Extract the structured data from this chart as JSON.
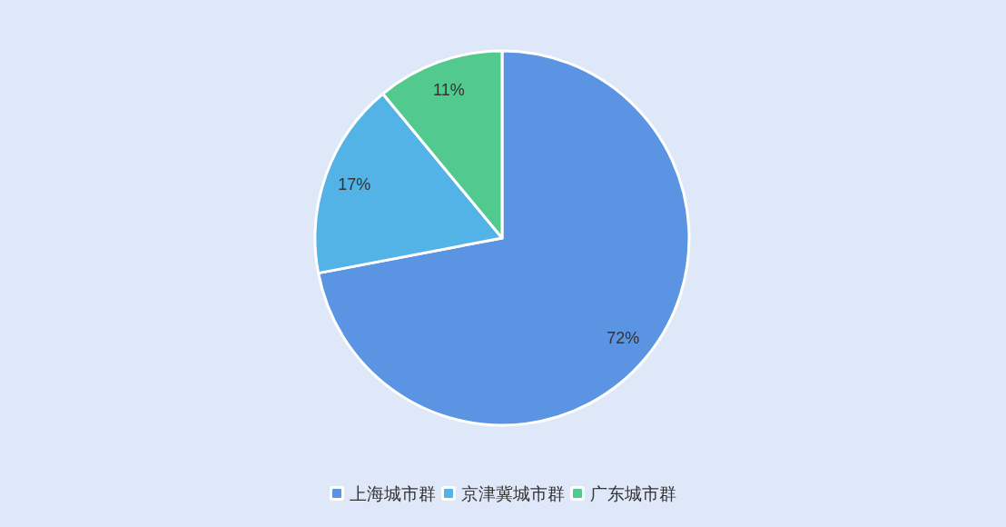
{
  "chart_data": {
    "type": "pie",
    "categories": [
      "上海城市群",
      "京津冀城市群",
      "广东城市群"
    ],
    "values": [
      72,
      17,
      11
    ],
    "colors": [
      "#5b94e3",
      "#53b3e6",
      "#52c98f"
    ],
    "value_labels": [
      "72%",
      "17%",
      "11%"
    ],
    "legend": "bottom"
  }
}
